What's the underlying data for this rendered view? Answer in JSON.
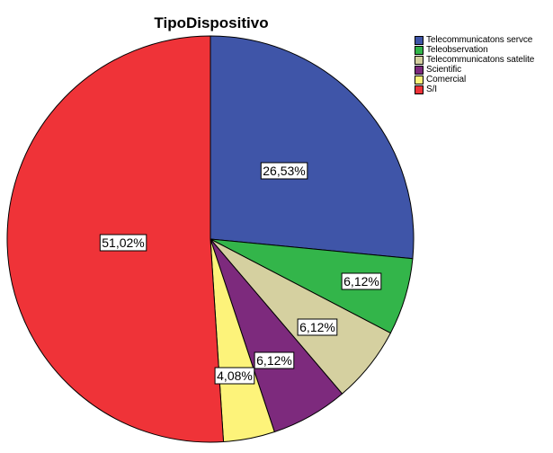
{
  "chart_data": {
    "type": "pie",
    "title": "TipoDispositivo",
    "legend_position": "top-right",
    "slices": [
      {
        "name": "Telecommunicatons servce",
        "value": 26.53,
        "label": "26,53%",
        "color": "#3f55a8"
      },
      {
        "name": "Teleobservation",
        "value": 6.12,
        "label": "6,12%",
        "color": "#33b54a"
      },
      {
        "name": "Telecommunicatons satelite",
        "value": 6.12,
        "label": "6,12%",
        "color": "#d5d0a0"
      },
      {
        "name": "Scientific",
        "value": 6.12,
        "label": "6,12%",
        "color": "#7d2a7d"
      },
      {
        "name": "Comercial",
        "value": 4.08,
        "label": "4,08%",
        "color": "#fdf37a"
      },
      {
        "name": "S/I",
        "value": 51.02,
        "label": "51,02%",
        "color": "#ef3338"
      }
    ]
  }
}
